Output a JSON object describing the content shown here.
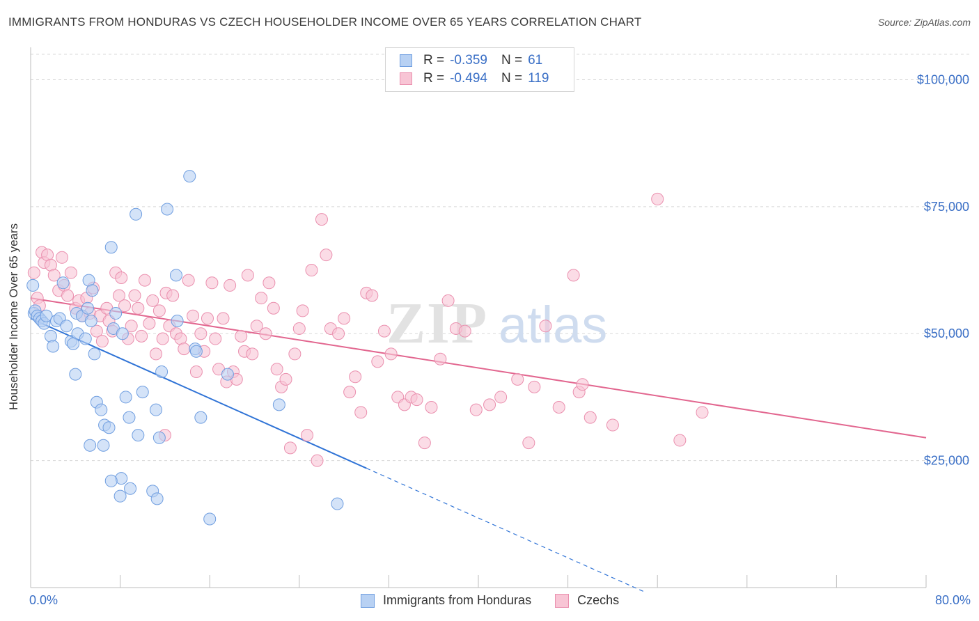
{
  "title": "IMMIGRANTS FROM HONDURAS VS CZECH HOUSEHOLDER INCOME OVER 65 YEARS CORRELATION CHART",
  "source": "Source: ZipAtlas.com",
  "watermark": {
    "zip": "ZIP",
    "atlas": "atlas"
  },
  "legend_top": [
    {
      "r_label": "R =",
      "r_value": "-0.359",
      "n_label": "N =",
      "n_value": "61"
    },
    {
      "r_label": "R =",
      "r_value": "-0.494",
      "n_label": "N =",
      "n_value": "119"
    }
  ],
  "legend_bottom": [
    "Immigrants from Honduras",
    "Czechs"
  ],
  "x_min_label": "0.0%",
  "x_max_label": "80.0%",
  "colors": {
    "blue_fill": "#b8d1f3",
    "blue_stroke": "#6f9ee0",
    "blue_line": "#2f73d6",
    "pink_fill": "#f8c5d5",
    "pink_stroke": "#ea8fae",
    "pink_line": "#e2668f",
    "tick_text": "#3a6fc6",
    "grid": "#d8d8d8"
  },
  "chart_data": {
    "type": "scatter",
    "xlabel": "",
    "ylabel": "Householder Income Over 65 years",
    "xlim": [
      0,
      80
    ],
    "ylim": [
      0,
      105000
    ],
    "y_ticks": [
      25000,
      50000,
      75000,
      100000
    ],
    "y_tick_labels": [
      "$25,000",
      "$50,000",
      "$75,000",
      "$100,000"
    ],
    "x_ticks": [
      0,
      8,
      16,
      24,
      32,
      40,
      48,
      56,
      64,
      72,
      80
    ],
    "grid": true,
    "series": [
      {
        "name": "Immigrants from Honduras",
        "color": "blue",
        "points": [
          [
            0.2,
            59500
          ],
          [
            0.3,
            54000
          ],
          [
            0.4,
            54500
          ],
          [
            0.6,
            53500
          ],
          [
            0.8,
            53000
          ],
          [
            1.0,
            52500
          ],
          [
            1.2,
            52000
          ],
          [
            1.4,
            53500
          ],
          [
            1.8,
            49500
          ],
          [
            2.0,
            47500
          ],
          [
            2.3,
            52500
          ],
          [
            2.6,
            53000
          ],
          [
            2.9,
            60000
          ],
          [
            3.2,
            51500
          ],
          [
            3.6,
            48500
          ],
          [
            4.1,
            54000
          ],
          [
            4.2,
            50000
          ],
          [
            4.6,
            53500
          ],
          [
            4.9,
            49000
          ],
          [
            5.1,
            55000
          ],
          [
            5.2,
            60500
          ],
          [
            5.5,
            58500
          ],
          [
            5.4,
            52500
          ],
          [
            5.7,
            46000
          ],
          [
            5.9,
            36500
          ],
          [
            6.3,
            35000
          ],
          [
            6.6,
            32000
          ],
          [
            7.0,
            31500
          ],
          [
            7.2,
            67000
          ],
          [
            7.4,
            51000
          ],
          [
            7.6,
            54000
          ],
          [
            8.2,
            50000
          ],
          [
            8.5,
            37500
          ],
          [
            8.8,
            33500
          ],
          [
            8.9,
            19500
          ],
          [
            9.4,
            73500
          ],
          [
            9.6,
            30000
          ],
          [
            10.0,
            38500
          ],
          [
            10.9,
            19000
          ],
          [
            11.2,
            35000
          ],
          [
            11.5,
            29500
          ],
          [
            11.7,
            42500
          ],
          [
            12.2,
            74500
          ],
          [
            13.1,
            52500
          ],
          [
            13.0,
            61500
          ],
          [
            14.2,
            81000
          ],
          [
            14.7,
            47000
          ],
          [
            14.8,
            46500
          ],
          [
            15.2,
            33500
          ],
          [
            16.0,
            13500
          ],
          [
            17.6,
            42000
          ],
          [
            22.2,
            36000
          ],
          [
            27.4,
            16500
          ],
          [
            6.5,
            28000
          ],
          [
            5.3,
            28000
          ],
          [
            8.1,
            21500
          ],
          [
            7.2,
            21000
          ],
          [
            8.0,
            18000
          ],
          [
            11.3,
            17500
          ],
          [
            4.0,
            42000
          ],
          [
            3.8,
            48000
          ]
        ],
        "trend": {
          "x0": 0,
          "y0": 53000,
          "x1": 30,
          "y1": 23500,
          "dashed_to_x": 55,
          "dashed_to_y": -1000
        }
      },
      {
        "name": "Czechs",
        "color": "pink",
        "points": [
          [
            0.3,
            62000
          ],
          [
            0.6,
            57000
          ],
          [
            0.8,
            55500
          ],
          [
            1.0,
            66000
          ],
          [
            1.2,
            64000
          ],
          [
            1.5,
            65500
          ],
          [
            1.8,
            63500
          ],
          [
            2.1,
            61500
          ],
          [
            2.5,
            58500
          ],
          [
            2.8,
            65000
          ],
          [
            3.0,
            59500
          ],
          [
            3.3,
            57500
          ],
          [
            3.6,
            62000
          ],
          [
            4.0,
            55000
          ],
          [
            4.3,
            56500
          ],
          [
            4.6,
            53500
          ],
          [
            5.0,
            57000
          ],
          [
            5.3,
            54000
          ],
          [
            5.6,
            59000
          ],
          [
            5.9,
            50500
          ],
          [
            6.2,
            53500
          ],
          [
            6.4,
            48500
          ],
          [
            6.8,
            55000
          ],
          [
            7.0,
            52500
          ],
          [
            7.3,
            50500
          ],
          [
            7.6,
            62000
          ],
          [
            7.9,
            57500
          ],
          [
            8.1,
            61000
          ],
          [
            8.4,
            55500
          ],
          [
            8.7,
            49000
          ],
          [
            9.0,
            51500
          ],
          [
            9.3,
            57500
          ],
          [
            9.6,
            55000
          ],
          [
            9.9,
            49500
          ],
          [
            10.2,
            60500
          ],
          [
            10.6,
            52000
          ],
          [
            10.9,
            56500
          ],
          [
            11.2,
            46000
          ],
          [
            11.5,
            54500
          ],
          [
            11.8,
            49000
          ],
          [
            12.1,
            58000
          ],
          [
            12.4,
            51500
          ],
          [
            12.7,
            57500
          ],
          [
            13.0,
            50000
          ],
          [
            13.4,
            49000
          ],
          [
            13.7,
            47000
          ],
          [
            14.1,
            60500
          ],
          [
            14.5,
            53500
          ],
          [
            14.8,
            42500
          ],
          [
            15.2,
            50000
          ],
          [
            15.5,
            46500
          ],
          [
            15.8,
            53000
          ],
          [
            16.2,
            60000
          ],
          [
            16.5,
            49000
          ],
          [
            16.8,
            43000
          ],
          [
            17.2,
            53000
          ],
          [
            17.5,
            40500
          ],
          [
            17.8,
            59500
          ],
          [
            18.1,
            42500
          ],
          [
            18.4,
            41000
          ],
          [
            18.8,
            49500
          ],
          [
            19.1,
            46500
          ],
          [
            19.4,
            61500
          ],
          [
            19.8,
            46000
          ],
          [
            20.2,
            51500
          ],
          [
            20.6,
            57000
          ],
          [
            21.0,
            50000
          ],
          [
            21.3,
            60000
          ],
          [
            21.7,
            55000
          ],
          [
            22.0,
            43000
          ],
          [
            22.4,
            39500
          ],
          [
            22.8,
            41000
          ],
          [
            23.2,
            27500
          ],
          [
            23.6,
            46000
          ],
          [
            24.0,
            51000
          ],
          [
            24.3,
            54500
          ],
          [
            24.7,
            30000
          ],
          [
            25.1,
            62500
          ],
          [
            25.6,
            25000
          ],
          [
            26.0,
            72500
          ],
          [
            26.4,
            65500
          ],
          [
            26.8,
            51000
          ],
          [
            27.5,
            50000
          ],
          [
            28.0,
            53000
          ],
          [
            28.5,
            38500
          ],
          [
            29.0,
            41500
          ],
          [
            29.5,
            34500
          ],
          [
            30.0,
            58000
          ],
          [
            30.5,
            57500
          ],
          [
            31.0,
            44500
          ],
          [
            31.6,
            50500
          ],
          [
            32.2,
            46000
          ],
          [
            32.8,
            37500
          ],
          [
            33.4,
            36000
          ],
          [
            34.0,
            37500
          ],
          [
            34.5,
            37000
          ],
          [
            35.2,
            28500
          ],
          [
            35.8,
            35500
          ],
          [
            36.6,
            45000
          ],
          [
            37.3,
            56500
          ],
          [
            38.0,
            51000
          ],
          [
            38.8,
            50500
          ],
          [
            39.8,
            35000
          ],
          [
            41.0,
            36000
          ],
          [
            42.0,
            37500
          ],
          [
            43.5,
            41000
          ],
          [
            45.0,
            39500
          ],
          [
            46.0,
            51500
          ],
          [
            47.2,
            35500
          ],
          [
            48.5,
            61500
          ],
          [
            49.0,
            38500
          ],
          [
            49.3,
            40000
          ],
          [
            50.0,
            33500
          ],
          [
            52.0,
            32000
          ],
          [
            56.0,
            76500
          ],
          [
            58.0,
            29000
          ],
          [
            60.0,
            34500
          ],
          [
            44.5,
            28500
          ],
          [
            12.0,
            30000
          ]
        ],
        "trend": {
          "x0": 0,
          "y0": 57000,
          "x1": 80,
          "y1": 29500
        }
      }
    ]
  }
}
